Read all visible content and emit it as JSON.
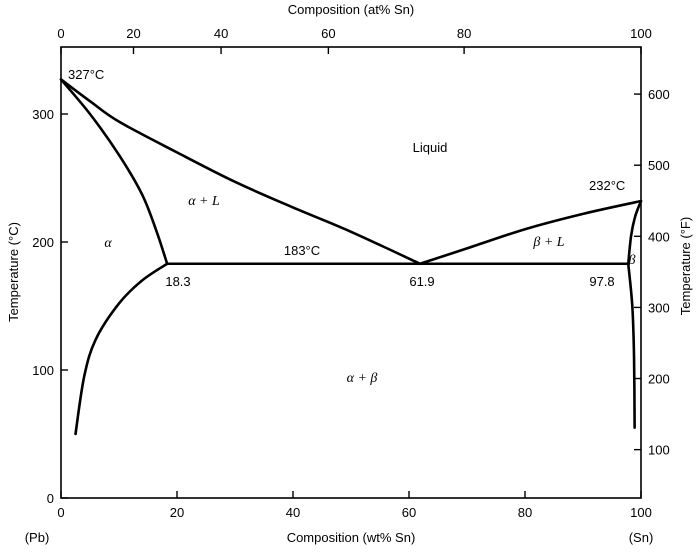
{
  "axes": {
    "top_label": "Composition (at% Sn)",
    "bottom_label": "Composition (wt% Sn)",
    "left_label": "Temperature (°C)",
    "right_label": "Temperature (°F)",
    "bottom_ticks": [
      "0",
      "20",
      "40",
      "60",
      "80",
      "100"
    ],
    "top_ticks": [
      "0",
      "20",
      "40",
      "60",
      "80",
      "100"
    ],
    "left_ticks": [
      "0",
      "100",
      "200",
      "300"
    ],
    "right_ticks": [
      "100",
      "200",
      "300",
      "400",
      "500",
      "600"
    ],
    "pb_label": "(Pb)",
    "sn_label": "(Sn)"
  },
  "regions": {
    "liquid": "Liquid",
    "alpha": "α",
    "alpha_l": "α + L",
    "beta_l": "β + L",
    "alpha_beta": "α + β",
    "beta": "β"
  },
  "points": {
    "pb_melt": "327°C",
    "sn_melt": "232°C",
    "eutectic_temp": "183°C",
    "alpha_max": "18.3",
    "eutectic_comp": "61.9",
    "beta_max": "97.8"
  },
  "chart_data": {
    "type": "phase-diagram",
    "x_unit": "wt% Sn",
    "y_unit": "°C",
    "xlim": [
      0,
      100
    ],
    "ylim": [
      0,
      340
    ],
    "pb_melting_point_C": 327,
    "sn_melting_point_C": 232,
    "eutectic": {
      "temperature_C": 183,
      "alpha_wt_Sn": 18.3,
      "liquid_wt_Sn": 61.9,
      "beta_wt_Sn": 97.8
    },
    "liquidus_left": [
      [
        0,
        327
      ],
      [
        5,
        310
      ],
      [
        10,
        294
      ],
      [
        20,
        270
      ],
      [
        30,
        247
      ],
      [
        40,
        227
      ],
      [
        50,
        208
      ],
      [
        61.9,
        183
      ]
    ],
    "liquidus_right": [
      [
        61.9,
        183
      ],
      [
        70,
        195
      ],
      [
        80,
        210
      ],
      [
        90,
        222
      ],
      [
        100,
        232
      ]
    ],
    "solidus_alpha": [
      [
        0,
        327
      ],
      [
        5,
        300
      ],
      [
        10,
        268
      ],
      [
        14,
        237
      ],
      [
        16.5,
        208
      ],
      [
        18.3,
        183
      ]
    ],
    "solvus_alpha": [
      [
        18.3,
        183
      ],
      [
        14,
        170
      ],
      [
        10,
        152
      ],
      [
        6,
        124
      ],
      [
        4,
        95
      ],
      [
        2.5,
        50
      ]
    ],
    "solidus_beta": [
      [
        97.8,
        183
      ],
      [
        98.3,
        205
      ],
      [
        99,
        220
      ],
      [
        100,
        232
      ]
    ],
    "solvus_beta": [
      [
        97.8,
        183
      ],
      [
        98.5,
        150
      ],
      [
        98.8,
        110
      ],
      [
        98.9,
        55
      ]
    ],
    "eutectic_line": [
      [
        18.3,
        183
      ],
      [
        97.8,
        183
      ]
    ]
  }
}
